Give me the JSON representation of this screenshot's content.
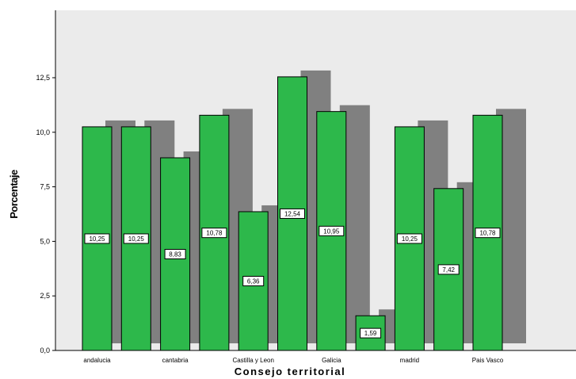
{
  "chart_data": {
    "type": "bar",
    "xlabel": "Consejo territorial",
    "ylabel": "Porcentaje",
    "ylim": [
      0,
      15
    ],
    "yticks": [
      "0,0",
      "2,5",
      "5,0",
      "7,5",
      "10,0",
      "12,5"
    ],
    "ytick_values": [
      0,
      2.5,
      5,
      7.5,
      10,
      12.5
    ],
    "categories": [
      "andalucia",
      "",
      "cantabria",
      "",
      "Castilla y Leon",
      "",
      "Galicia",
      "",
      "madrid",
      "",
      "Pais Vasco"
    ],
    "values": [
      10.25,
      10.25,
      8.83,
      10.78,
      6.36,
      12.54,
      10.95,
      1.59,
      10.25,
      7.42,
      10.78
    ],
    "data_labels": [
      "10,25",
      "10,25",
      "8,83",
      "10,78",
      "6,36",
      "12,54",
      "10,95",
      "1,59",
      "10,25",
      "7,42",
      "10,78"
    ],
    "grid": false,
    "colors": {
      "bar": "#2db84b",
      "shadow": "#808080",
      "background": "#ebebeb"
    }
  }
}
